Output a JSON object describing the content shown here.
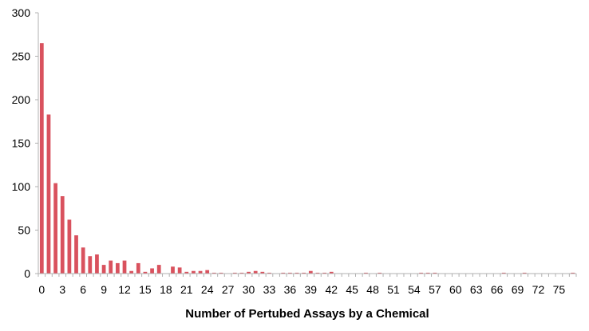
{
  "chart_data": {
    "type": "bar",
    "title": "",
    "xlabel": "Number of Pertubed Assays by a Chemical",
    "ylabel": "",
    "ylim": [
      0,
      300
    ],
    "yticks": [
      0,
      50,
      100,
      150,
      200,
      250,
      300
    ],
    "x_tick_labels": [
      0,
      3,
      6,
      9,
      12,
      15,
      18,
      21,
      24,
      27,
      30,
      33,
      36,
      39,
      42,
      45,
      48,
      51,
      54,
      57,
      60,
      63,
      66,
      69,
      72,
      75
    ],
    "grid": false,
    "legend": "none",
    "bar_color": "#d9525e",
    "categories": [
      0,
      1,
      2,
      3,
      4,
      5,
      6,
      7,
      8,
      9,
      10,
      11,
      12,
      13,
      14,
      15,
      16,
      17,
      18,
      19,
      20,
      21,
      22,
      23,
      24,
      25,
      26,
      27,
      28,
      29,
      30,
      31,
      32,
      33,
      34,
      35,
      36,
      37,
      38,
      39,
      40,
      41,
      42,
      43,
      44,
      45,
      46,
      47,
      48,
      49,
      50,
      51,
      52,
      53,
      54,
      55,
      56,
      57,
      58,
      59,
      60,
      61,
      62,
      63,
      64,
      65,
      66,
      67,
      68,
      69,
      70,
      71,
      72,
      73,
      74,
      75,
      76,
      77
    ],
    "values": [
      265,
      183,
      104,
      89,
      62,
      44,
      30,
      20,
      22,
      10,
      15,
      12,
      15,
      3,
      12,
      2,
      6,
      10,
      0,
      8,
      7,
      2,
      3,
      3,
      4,
      1,
      1,
      0,
      1,
      1,
      2,
      3,
      2,
      1,
      0,
      1,
      1,
      1,
      1,
      3,
      1,
      1,
      2,
      0,
      0,
      0,
      0,
      1,
      0,
      1,
      0,
      0,
      0,
      0,
      0,
      1,
      1,
      1,
      0,
      0,
      0,
      0,
      0,
      0,
      0,
      0,
      0,
      1,
      0,
      0,
      1,
      0,
      0,
      0,
      0,
      0,
      0,
      1
    ]
  }
}
